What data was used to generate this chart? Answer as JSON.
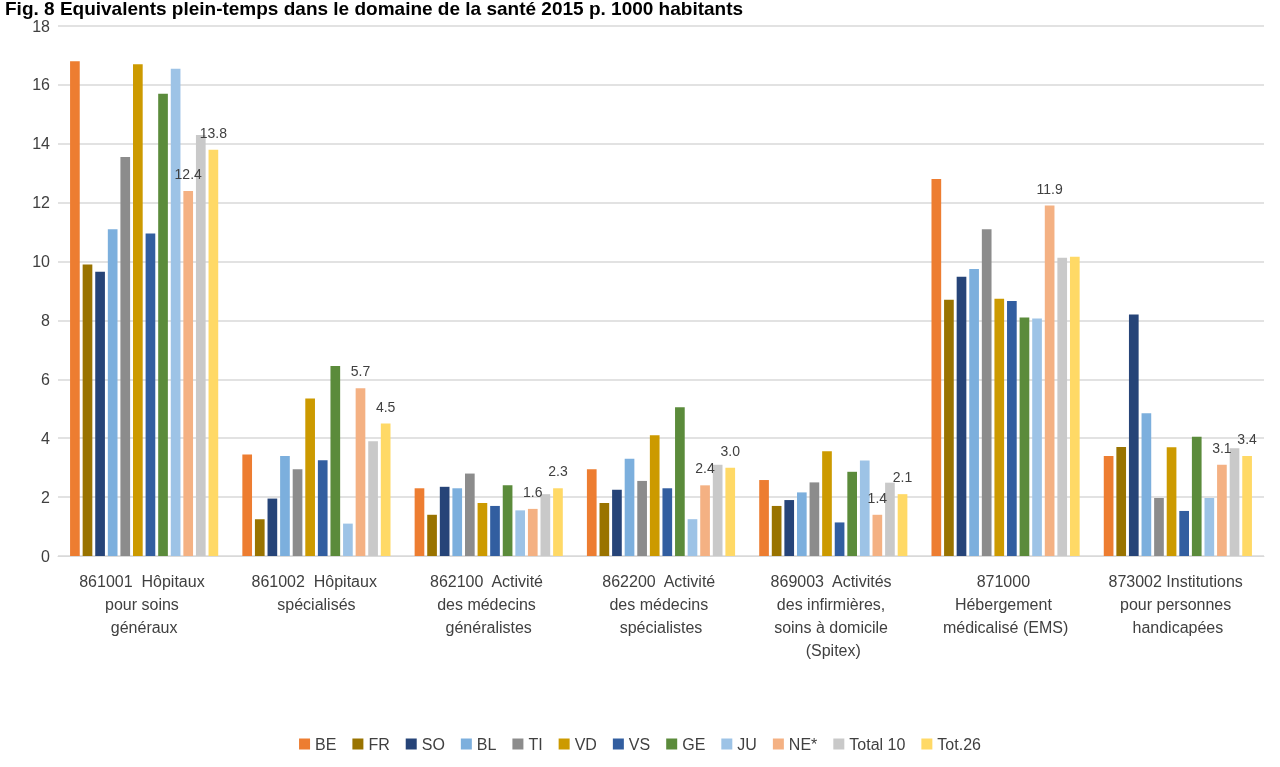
{
  "chart_data": {
    "type": "bar",
    "title": "Fig. 8 Equivalents plein-temps dans le domaine de la santé 2015 p. 1000 habitants",
    "categories": [
      "861001  Hôpitaux pour soins généraux",
      "861002  Hôpitaux spécialisés",
      "862100  Activité des médecins généralistes",
      "862200  Activité des médecins spécialistes",
      "869003  Activités des infirmières, soins à domicile (Spitex)",
      "871000 Hébergement médicalisé (EMS)",
      "873002 Institutions pour personnes handicapées"
    ],
    "series": [
      {
        "name": "BE",
        "color": "#ed7d31",
        "values": [
          16.8,
          3.45,
          2.3,
          2.95,
          2.58,
          12.8,
          3.4
        ]
      },
      {
        "name": "FR",
        "color": "#997300",
        "values": [
          9.9,
          1.25,
          1.4,
          1.8,
          1.7,
          8.7,
          3.7
        ]
      },
      {
        "name": "SO",
        "color": "#264478",
        "values": [
          9.65,
          1.95,
          2.35,
          2.25,
          1.9,
          9.48,
          8.2
        ]
      },
      {
        "name": "BL",
        "color": "#7cafdd",
        "values": [
          11.1,
          3.4,
          2.3,
          3.3,
          2.16,
          9.75,
          4.85
        ]
      },
      {
        "name": "TI",
        "color": "#8c8c8c",
        "values": [
          13.55,
          2.95,
          2.8,
          2.55,
          2.5,
          11.1,
          1.97
        ]
      },
      {
        "name": "VD",
        "color": "#cc9a00",
        "values": [
          16.7,
          5.35,
          1.8,
          4.1,
          3.56,
          8.74,
          3.69
        ]
      },
      {
        "name": "VS",
        "color": "#325ea0",
        "values": [
          10.95,
          3.25,
          1.7,
          2.3,
          1.14,
          8.66,
          1.53
        ]
      },
      {
        "name": "GE",
        "color": "#5b8b3b",
        "values": [
          15.7,
          6.45,
          2.4,
          5.05,
          2.86,
          8.1,
          4.05
        ]
      },
      {
        "name": "JU",
        "color": "#9dc3e6",
        "values": [
          16.55,
          1.1,
          1.55,
          1.25,
          3.24,
          8.07,
          1.97
        ]
      },
      {
        "name": "NE*",
        "color": "#f4b183",
        "values": [
          12.4,
          5.7,
          1.6,
          2.4,
          1.4,
          11.9,
          3.1
        ],
        "value_labels": [
          "12.4",
          "5.7",
          "1.6",
          "2.4",
          "1.4",
          "11.9",
          "3.1"
        ]
      },
      {
        "name": "Total 10",
        "color": "#c9c9c9",
        "values": [
          14.3,
          3.9,
          2.1,
          3.1,
          2.49,
          10.13,
          3.66
        ]
      },
      {
        "name": "Tot.26",
        "color": "#ffd966",
        "values": [
          13.8,
          4.5,
          2.3,
          3.0,
          2.1,
          10.16,
          3.4
        ],
        "value_labels": [
          "13.8",
          "4.5",
          "2.3",
          "3.0",
          "2.1",
          null,
          "3.4"
        ]
      }
    ],
    "ylim": [
      0,
      18
    ],
    "yticks": [
      0,
      2,
      4,
      6,
      8,
      10,
      12,
      14,
      16,
      18
    ],
    "grid": "y",
    "legend": "bottom"
  }
}
